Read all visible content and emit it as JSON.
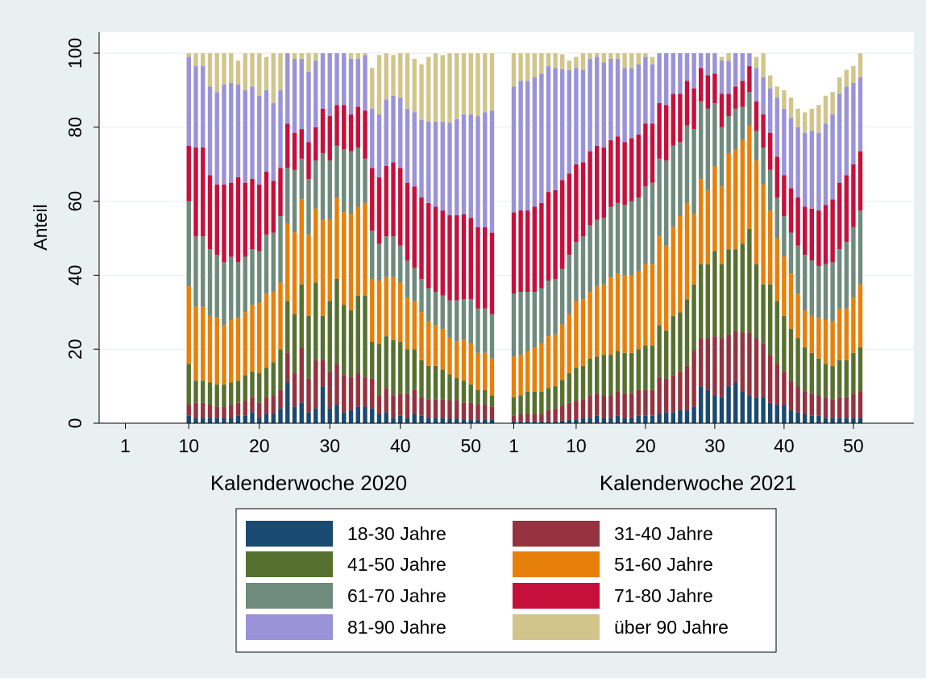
{
  "colors": {
    "outer_background": "#e9f0f2",
    "plot_background": "#ffffff",
    "gridline": "#e6eef1",
    "18-30": "#1b4a70",
    "31-40": "#94333f",
    "41-50": "#56712f",
    "51-60": "#e7800a",
    "61-70": "#6f8b7e",
    "71-80": "#c6103c",
    "81-90": "#9b93d8",
    "90+": "#d1c58b"
  },
  "chart_data": {
    "type": "bar",
    "stacked": true,
    "title": "",
    "ylabel": "Anteil",
    "ylim": [
      0,
      100
    ],
    "yticks": [
      "0",
      "20",
      "40",
      "60",
      "80",
      "100"
    ],
    "grid": true,
    "legend_position": "bottom",
    "panels": [
      {
        "xlabel": "Kalenderwoche 2020",
        "xticks": [
          "1",
          "10",
          "20",
          "30",
          "40",
          "50"
        ],
        "weeks": [
          10,
          11,
          12,
          13,
          14,
          15,
          16,
          17,
          18,
          19,
          20,
          21,
          22,
          23,
          24,
          25,
          26,
          27,
          28,
          29,
          30,
          31,
          32,
          33,
          34,
          35,
          36,
          37,
          38,
          39,
          40,
          41,
          42,
          43,
          44,
          45,
          46,
          47,
          48,
          49,
          50,
          51,
          52,
          53
        ]
      },
      {
        "xlabel": "Kalenderwoche 2021",
        "xticks": [
          "1",
          "10",
          "20",
          "30",
          "40",
          "50"
        ],
        "weeks": [
          1,
          2,
          3,
          4,
          5,
          6,
          7,
          8,
          9,
          10,
          11,
          12,
          13,
          14,
          15,
          16,
          17,
          18,
          19,
          20,
          21,
          22,
          23,
          24,
          25,
          26,
          27,
          28,
          29,
          30,
          31,
          32,
          33,
          34,
          35,
          36,
          37,
          38,
          39,
          40,
          41,
          42,
          43,
          44,
          45,
          46,
          47,
          48,
          49,
          50,
          51
        ]
      }
    ],
    "series": [
      {
        "name": "18-30 Jahre",
        "color_key": "18-30",
        "values": [
          2,
          1.5,
          1.5,
          1.5,
          1.5,
          1.5,
          1.5,
          2,
          2,
          3,
          1.5,
          2.5,
          2.5,
          4,
          11,
          4.5,
          5.5,
          3,
          4,
          10,
          4,
          5,
          3,
          3.5,
          4.5,
          4.5,
          4,
          2.5,
          3,
          1.5,
          2,
          1.5,
          2.5,
          2,
          1.5,
          1.5,
          1.5,
          1.2,
          1.2,
          1,
          1,
          1,
          1,
          1,
          0.5,
          0.5,
          0.5,
          0.5,
          0.5,
          0.5,
          0.5,
          0.7,
          1,
          1,
          1.5,
          1.5,
          2,
          1.5,
          1.5,
          2,
          1.5,
          1.5,
          2,
          2,
          2,
          2.5,
          3,
          3,
          3.5,
          3.5,
          4.5,
          10,
          9,
          7.5,
          7,
          10,
          11,
          8.5,
          7.5,
          7,
          7,
          5.5,
          5,
          5,
          3.5,
          3,
          2.5,
          2,
          2,
          1.5,
          1.5,
          1.5,
          1.5,
          1.5,
          1.5
        ]
      },
      {
        "name": "31-40 Jahre",
        "color_key": "31-40",
        "values": [
          3,
          4,
          4,
          3.5,
          3,
          3,
          3.5,
          3.5,
          4,
          4,
          4,
          4.5,
          5,
          5,
          8,
          9,
          15,
          9,
          13,
          7,
          10,
          11,
          10,
          9,
          9,
          8,
          8,
          5,
          6.5,
          6,
          6,
          6.5,
          6.5,
          5,
          5,
          5,
          5,
          5,
          5,
          4.5,
          4.5,
          4,
          4,
          3.5,
          1.5,
          2,
          2,
          2,
          2,
          3,
          3.5,
          4,
          4.5,
          5,
          5,
          6,
          6,
          6,
          6,
          6.5,
          6.5,
          6.5,
          7,
          7,
          7,
          10,
          9,
          10,
          10.5,
          12,
          15,
          13,
          14,
          16,
          16,
          14,
          14,
          16,
          17,
          16,
          14.5,
          13,
          11,
          9,
          8,
          7,
          6,
          6,
          5.5,
          5.5,
          5,
          5.5,
          5.5,
          6.5,
          7
        ]
      },
      {
        "name": "41-50 Jahre",
        "color_key": "41-50",
        "values": [
          11,
          6,
          6,
          6,
          6,
          6,
          6,
          6,
          7,
          7,
          8,
          8,
          9,
          11,
          14,
          16,
          17,
          17,
          21,
          12,
          19,
          23,
          19,
          18,
          21,
          22,
          10,
          14,
          14,
          15,
          14,
          12,
          11,
          10,
          9,
          9,
          8,
          7,
          6,
          6,
          5,
          4,
          4,
          3,
          5,
          5,
          6,
          6,
          6,
          6,
          6,
          7,
          8,
          9,
          9,
          10,
          10,
          11,
          11,
          11,
          11,
          11,
          11,
          12,
          12,
          14,
          13,
          16,
          16,
          18,
          18,
          20,
          20,
          23,
          20,
          23,
          22,
          24,
          28,
          20,
          16,
          19,
          17,
          15,
          14,
          13,
          12,
          11,
          10,
          9,
          9,
          10,
          10,
          11,
          12
        ]
      },
      {
        "name": "51-60 Jahre",
        "color_key": "51-60",
        "values": [
          21,
          20,
          20,
          18,
          18,
          16,
          17,
          17,
          17,
          18,
          19,
          20,
          19,
          18,
          21,
          22,
          23,
          22,
          20,
          26,
          22,
          22,
          25,
          26,
          24,
          25,
          17,
          17,
          16,
          17,
          16,
          14,
          13,
          13,
          12,
          11,
          11,
          10,
          10,
          11,
          11,
          10,
          10,
          10,
          11,
          11,
          11,
          12,
          13,
          14,
          14,
          15,
          16,
          18,
          18,
          18,
          19,
          19,
          21,
          21,
          21,
          21,
          21,
          22,
          22,
          24,
          23,
          24,
          26,
          26,
          19,
          23,
          20,
          23,
          21,
          26,
          27,
          28,
          28,
          28,
          27,
          20,
          17,
          16,
          15,
          12,
          10,
          10,
          11,
          12,
          12,
          14,
          14,
          15,
          17
        ]
      },
      {
        "name": "61-70 Jahre",
        "color_key": "61-70",
        "values": [
          23,
          19,
          19,
          18,
          17,
          17,
          17,
          15,
          15,
          15,
          14,
          16,
          16,
          18,
          15,
          17,
          11,
          15,
          13,
          18,
          16,
          14,
          17,
          17,
          16,
          12,
          13,
          10,
          11,
          11,
          10,
          10,
          9,
          9,
          9,
          9,
          9,
          10,
          11,
          11,
          12,
          12,
          12,
          12,
          17,
          17,
          16,
          15,
          15,
          15,
          15,
          15,
          16,
          16,
          17,
          18,
          18,
          18,
          19,
          19,
          19,
          20,
          20,
          21,
          22,
          21,
          23,
          22,
          20,
          21,
          23,
          21,
          22,
          17,
          16,
          10,
          11,
          9,
          9,
          8,
          10,
          11,
          11,
          11,
          11,
          13,
          15,
          15,
          14,
          15,
          16,
          16,
          18,
          19,
          20
        ]
      },
      {
        "name": "71-80 Jahre",
        "color_key": "71-80",
        "values": [
          15,
          24,
          24,
          20,
          19,
          21,
          20,
          23,
          20,
          19,
          18,
          17,
          14,
          13,
          12,
          10,
          8,
          10,
          9,
          12,
          12,
          11,
          12,
          10,
          11,
          13,
          17,
          18,
          19,
          20,
          21,
          21,
          22,
          22,
          23,
          23,
          23,
          23,
          23,
          23,
          22,
          22,
          22,
          22,
          22,
          22,
          22,
          23,
          23,
          24,
          24,
          24,
          22,
          21,
          20,
          20,
          20,
          19,
          18,
          18,
          17,
          17,
          17,
          17,
          16,
          15,
          15,
          14,
          13,
          12,
          11,
          9,
          9,
          8,
          9,
          6,
          6,
          7,
          7,
          8,
          9,
          10,
          11,
          11,
          12,
          13,
          13,
          14,
          15,
          16,
          17,
          18,
          18,
          17,
          16
        ]
      },
      {
        "name": "81-90 Jahre",
        "color_key": "81-90",
        "values": [
          24,
          22,
          22,
          24,
          25,
          27,
          27,
          25,
          25,
          25,
          24,
          22,
          21,
          21,
          21,
          20,
          19,
          19,
          18,
          19,
          17,
          14,
          14,
          15,
          13,
          15,
          16,
          17,
          18,
          18,
          19,
          20,
          20,
          21,
          22,
          23,
          24,
          25,
          26,
          27,
          28,
          30,
          31,
          33,
          34,
          35,
          35,
          35,
          35,
          34,
          33,
          30,
          28,
          26,
          25,
          25,
          24,
          23,
          22,
          21,
          20,
          19,
          19,
          18,
          16,
          15,
          14,
          13,
          12,
          11,
          10,
          8,
          8,
          10,
          9,
          9,
          9,
          9,
          9,
          9,
          10,
          12,
          16,
          18,
          19,
          19,
          20,
          21,
          21,
          22,
          23,
          24,
          24,
          22,
          20
        ]
      },
      {
        "name": "über 90 Jahre",
        "color_key": "90+",
        "values": [
          1,
          3.5,
          3.5,
          9,
          10.5,
          8.5,
          8,
          6.5,
          10,
          9,
          11.5,
          9,
          13.5,
          10,
          8,
          7.5,
          5.5,
          10,
          6,
          6,
          9,
          9,
          10,
          10.5,
          8.5,
          10.5,
          11,
          16,
          13,
          11,
          12,
          15,
          14.5,
          15,
          17.5,
          18.5,
          18,
          18.8,
          17.8,
          17.5,
          18.5,
          18,
          19,
          19.5,
          9,
          7.5,
          7.5,
          7,
          6,
          4.5,
          5,
          4,
          2.5,
          3,
          4.5,
          4.5,
          3,
          3,
          3,
          2.5,
          4,
          5,
          3,
          2,
          2,
          1.5,
          1.5,
          1.5,
          1.5,
          2,
          3,
          1,
          1.5,
          3,
          1,
          2,
          1,
          1,
          1,
          3,
          6.5,
          3.5,
          3,
          5,
          5.5,
          5,
          5.5,
          6,
          7.5,
          7.5,
          6,
          4.5,
          4.5,
          4.5,
          6.5
        ]
      }
    ]
  }
}
